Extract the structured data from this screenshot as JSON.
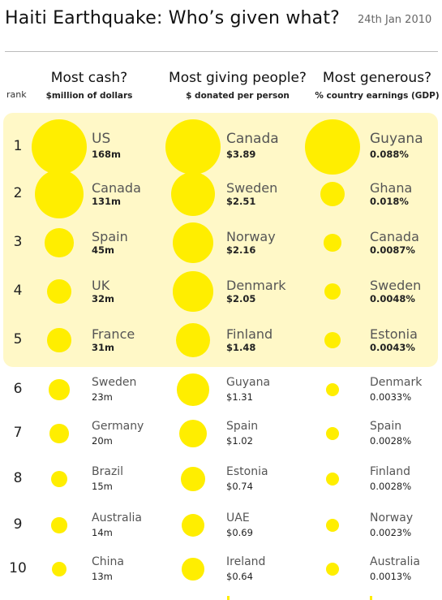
{
  "title": "Haiti Earthquake: Who’s given what?",
  "date": "24th Jan 2010",
  "rank_label": "rank",
  "columns": [
    {
      "heading": "Most cash?",
      "subheading": "$million of dollars"
    },
    {
      "heading": "Most giving people?",
      "subheading": "$ donated per person"
    },
    {
      "heading": "Most generous?",
      "subheading": "% country earnings (GDP)"
    }
  ],
  "chart_data": {
    "type": "table",
    "highlight_ranks": [
      1,
      2,
      3,
      4,
      5
    ],
    "bubble_color": "#ffee00",
    "highlight_color": "#fff8c7",
    "ranks": [
      1,
      2,
      3,
      4,
      5,
      6,
      7,
      8,
      9,
      10
    ],
    "series": [
      {
        "key": "cash",
        "rows": [
          {
            "name": "US",
            "label": "168m",
            "value": 168
          },
          {
            "name": "Canada",
            "label": "131m",
            "value": 131
          },
          {
            "name": "Spain",
            "label": "45m",
            "value": 45
          },
          {
            "name": "UK",
            "label": "32m",
            "value": 32
          },
          {
            "name": "France",
            "label": "31m",
            "value": 31
          },
          {
            "name": "Sweden",
            "label": "23m",
            "value": 23
          },
          {
            "name": "Germany",
            "label": "20m",
            "value": 20
          },
          {
            "name": "Brazil",
            "label": "15m",
            "value": 15
          },
          {
            "name": "Australia",
            "label": "14m",
            "value": 14
          },
          {
            "name": "China",
            "label": "13m",
            "value": 13
          }
        ]
      },
      {
        "key": "per_person",
        "rows": [
          {
            "name": "Canada",
            "label": "$3.89",
            "value": 3.89
          },
          {
            "name": "Sweden",
            "label": "$2.51",
            "value": 2.51
          },
          {
            "name": "Norway",
            "label": "$2.16",
            "value": 2.16
          },
          {
            "name": "Denmark",
            "label": "$2.05",
            "value": 2.05
          },
          {
            "name": "Finland",
            "label": "$1.48",
            "value": 1.48
          },
          {
            "name": "Guyana",
            "label": "$1.31",
            "value": 1.31
          },
          {
            "name": "Spain",
            "label": "$1.02",
            "value": 1.02
          },
          {
            "name": "Estonia",
            "label": "$0.74",
            "value": 0.74
          },
          {
            "name": "UAE",
            "label": "$0.69",
            "value": 0.69
          },
          {
            "name": "Ireland",
            "label": "$0.64",
            "value": 0.64
          }
        ]
      },
      {
        "key": "gdp_share",
        "rows": [
          {
            "name": "Guyana",
            "label": "0.088%",
            "value": 0.088
          },
          {
            "name": "Ghana",
            "label": "0.018%",
            "value": 0.018
          },
          {
            "name": "Canada",
            "label": "0.0087%",
            "value": 0.0087
          },
          {
            "name": "Sweden",
            "label": "0.0048%",
            "value": 0.0048
          },
          {
            "name": "Estonia",
            "label": "0.0043%",
            "value": 0.0043
          },
          {
            "name": "Denmark",
            "label": "0.0033%",
            "value": 0.0033
          },
          {
            "name": "Spain",
            "label": "0.0028%",
            "value": 0.0028
          },
          {
            "name": "Finland",
            "label": "0.0028%",
            "value": 0.0028
          },
          {
            "name": "Norway",
            "label": "0.0023%",
            "value": 0.0023
          },
          {
            "name": "Australia",
            "label": "0.0013%",
            "value": 0.0013
          }
        ]
      }
    ]
  }
}
